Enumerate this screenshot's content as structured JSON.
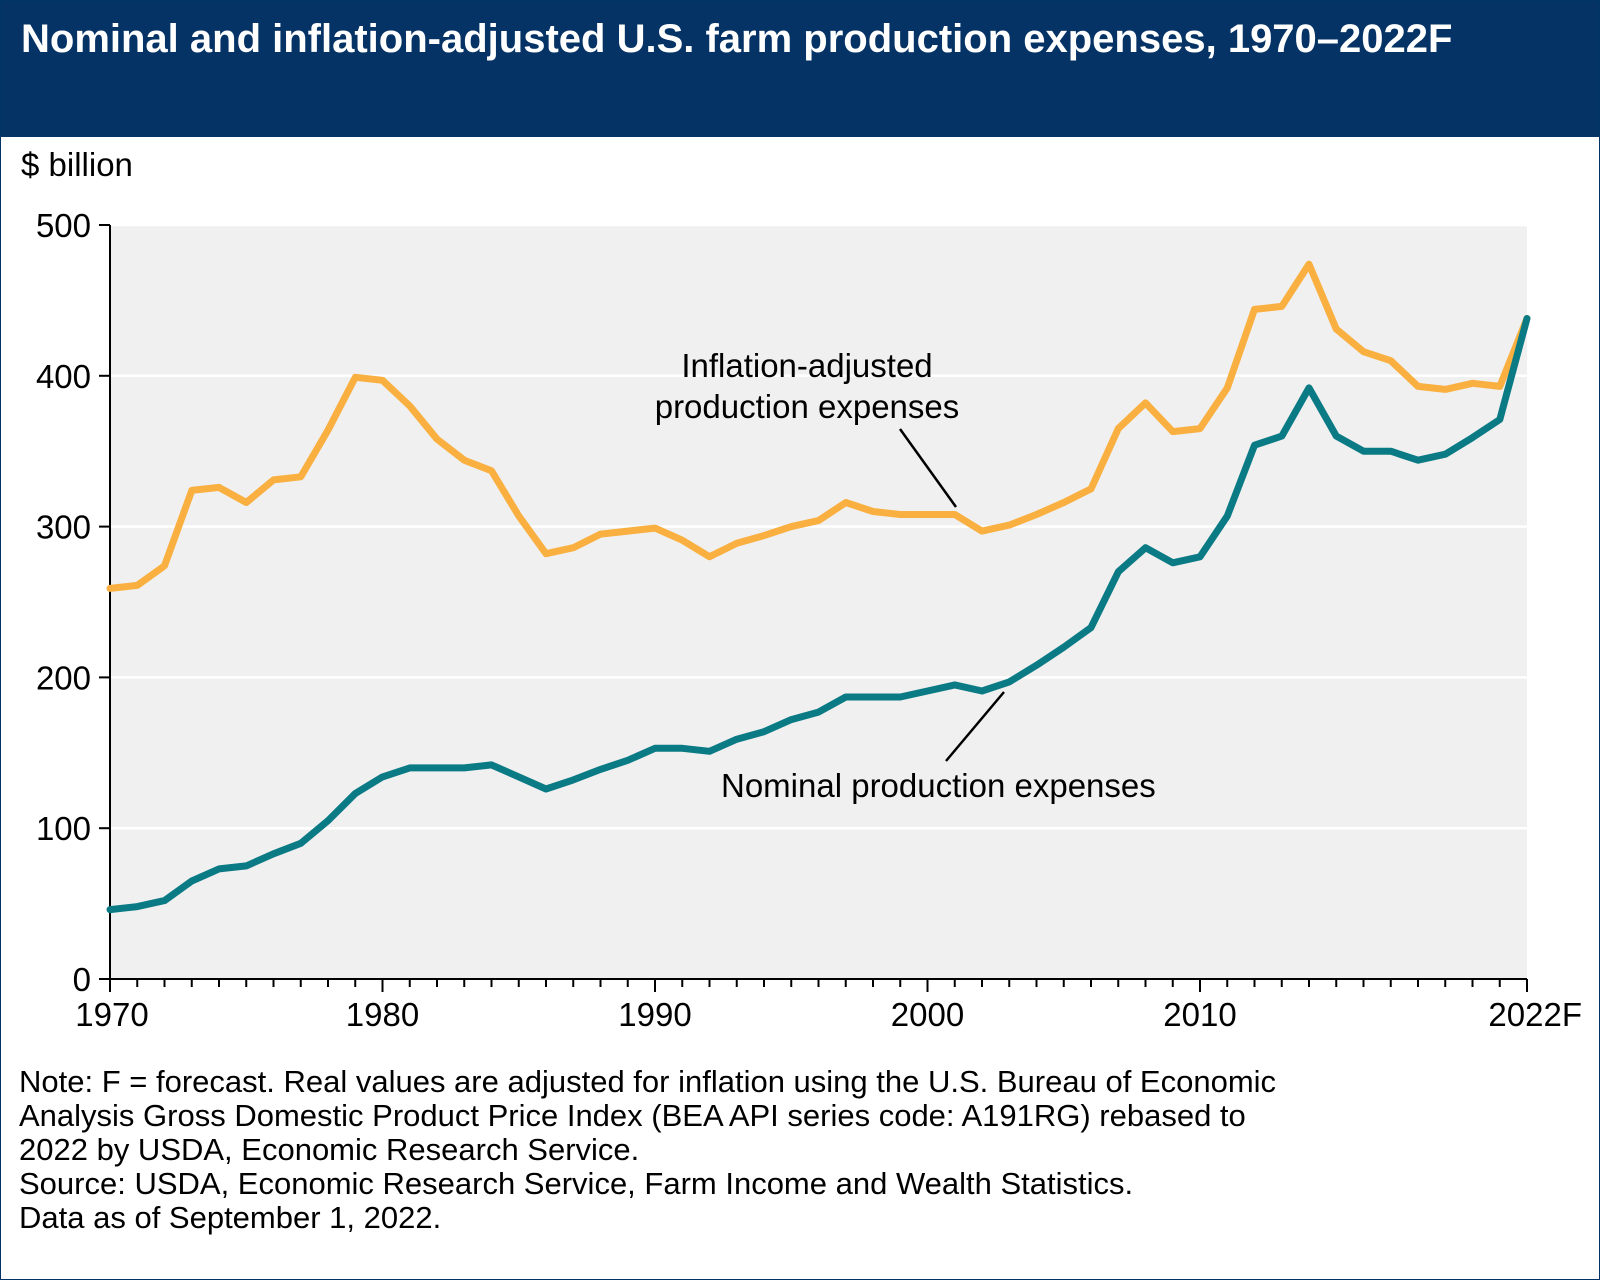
{
  "title": "Nominal and inflation-adjusted U.S. farm production expenses, 1970–2022F",
  "unit_label": "$ billion",
  "notes": [
    "Note: F = forecast. Real values are adjusted for inflation using the U.S. Bureau of Economic",
    "Analysis Gross Domestic Product Price Index (BEA API series code: A191RG) rebased to",
    "2022 by USDA, Economic Research Service.",
    "Source: USDA, Economic Research Service, Farm Income and Wealth Statistics.",
    "Data as of September 1, 2022."
  ],
  "chart_data": {
    "type": "line",
    "title": "Nominal and inflation-adjusted U.S. farm production expenses, 1970–2022F",
    "ylabel": "$ billion",
    "xlabel": "",
    "ylim": [
      0,
      500
    ],
    "xlim": [
      1970,
      2022
    ],
    "yticks": [
      0,
      100,
      200,
      300,
      400,
      500
    ],
    "xticks": [
      {
        "value": 1970,
        "label": "1970"
      },
      {
        "value": 1980,
        "label": "1980"
      },
      {
        "value": 1990,
        "label": "1990"
      },
      {
        "value": 2000,
        "label": "2000"
      },
      {
        "value": 2010,
        "label": "2010"
      },
      {
        "value": 2022,
        "label": "2022F"
      }
    ],
    "grid": "horizontal",
    "colors": {
      "inflation_adjusted": "#F9B041",
      "nominal": "#0A7A84",
      "plot_bg": "#F0F0F0",
      "title_bg": "#063366"
    },
    "x": [
      1970,
      1971,
      1972,
      1973,
      1974,
      1975,
      1976,
      1977,
      1978,
      1979,
      1980,
      1981,
      1982,
      1983,
      1984,
      1985,
      1986,
      1987,
      1988,
      1989,
      1990,
      1991,
      1992,
      1993,
      1994,
      1995,
      1996,
      1997,
      1998,
      1999,
      2000,
      2001,
      2002,
      2003,
      2004,
      2005,
      2006,
      2007,
      2008,
      2009,
      2010,
      2011,
      2012,
      2013,
      2014,
      2015,
      2016,
      2017,
      2018,
      2019,
      2020,
      2021,
      2022
    ],
    "series": [
      {
        "name": "Inflation-adjusted production expenses",
        "values": [
          259,
          261,
          274,
          324,
          326,
          316,
          331,
          333,
          364,
          399,
          397,
          380,
          358,
          344,
          337,
          307,
          282,
          286,
          295,
          297,
          299,
          291,
          280,
          289,
          294,
          300,
          304,
          316,
          310,
          308,
          308,
          308,
          297,
          301,
          308,
          316,
          325,
          365,
          382,
          363,
          365,
          392,
          444,
          446,
          474,
          431,
          416,
          410,
          393,
          391,
          395,
          393,
          438
        ]
      },
      {
        "name": "Nominal production expenses",
        "values": [
          46,
          48,
          52,
          65,
          73,
          75,
          83,
          90,
          105,
          123,
          134,
          140,
          140,
          140,
          142,
          134,
          126,
          132,
          139,
          145,
          153,
          153,
          151,
          159,
          164,
          172,
          177,
          187,
          187,
          187,
          191,
          195,
          191,
          197,
          208,
          220,
          233,
          270,
          286,
          276,
          280,
          307,
          354,
          360,
          392,
          360,
          350,
          350,
          344,
          348,
          359,
          371,
          438
        ]
      }
    ],
    "annotations": [
      {
        "text_lines": [
          "Inflation-adjusted",
          "production expenses"
        ],
        "series": "Inflation-adjusted production expenses",
        "points_to_year": 2001
      },
      {
        "text_lines": [
          "Nominal production expenses"
        ],
        "series": "Nominal production expenses",
        "points_to_year": 2003
      }
    ]
  }
}
